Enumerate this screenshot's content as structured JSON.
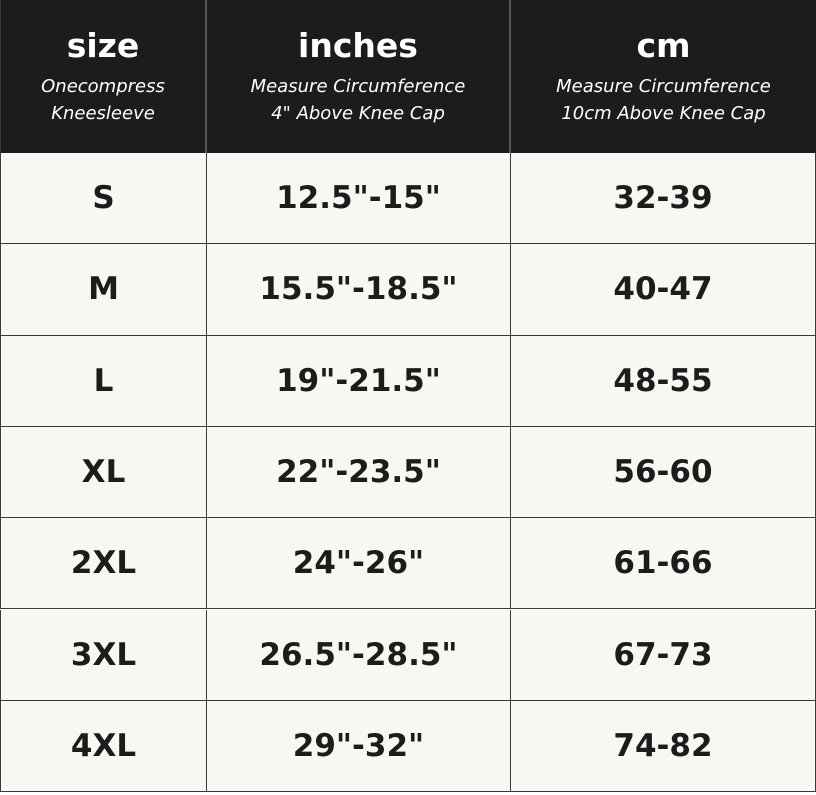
{
  "table": {
    "header": [
      {
        "title": "size",
        "subtitle": [
          "Onecompress",
          "Kneesleeve"
        ]
      },
      {
        "title": "inches",
        "subtitle": [
          "Measure Circumference",
          "4\" Above Knee Cap"
        ]
      },
      {
        "title": "cm",
        "subtitle": [
          "Measure Circumference",
          "10cm Above Knee Cap"
        ]
      }
    ],
    "rows": [
      [
        "S",
        "12.5\"-15\"",
        "32-39"
      ],
      [
        "M",
        "15.5\"-18.5\"",
        "40-47"
      ],
      [
        "L",
        "19\"-21.5\"",
        "48-55"
      ],
      [
        "XL",
        "22\"-23.5\"",
        "56-60"
      ],
      [
        "2XL",
        "24\"-26\"",
        "61-66"
      ],
      [
        "3XL",
        "26.5\"-28.5\"",
        "67-73"
      ],
      [
        "4XL",
        "29\"-32\"",
        "74-82"
      ]
    ]
  }
}
